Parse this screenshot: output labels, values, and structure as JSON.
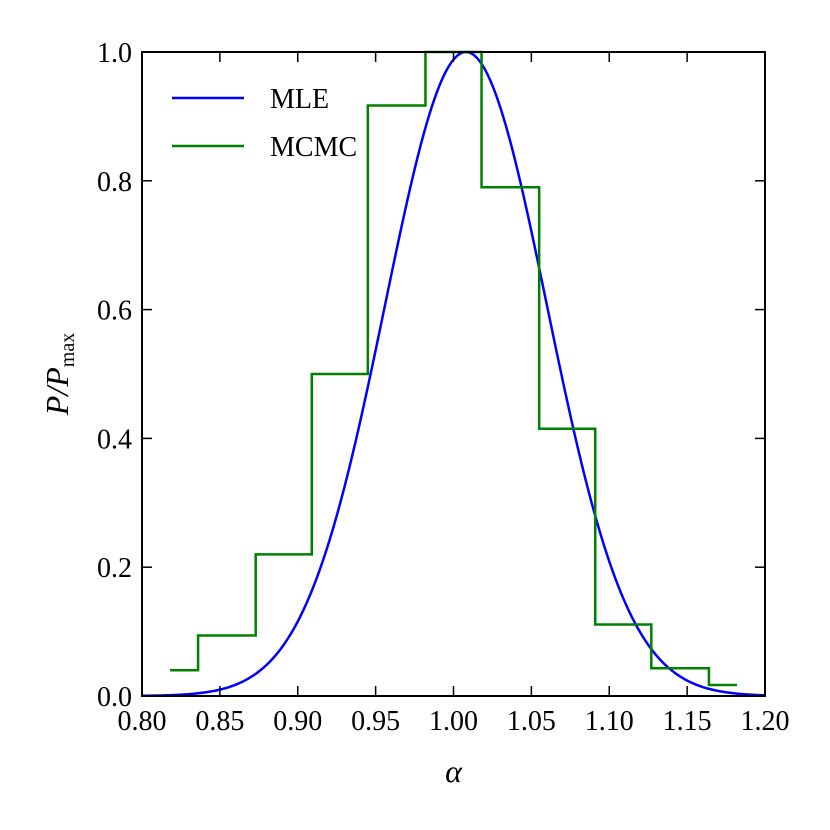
{
  "chart_data": {
    "type": "line",
    "title": "",
    "xlabel": "α",
    "ylabel": {
      "main": "P/P",
      "subscript": "max"
    },
    "xlim": [
      0.8,
      1.2
    ],
    "ylim": [
      0.0,
      1.0
    ],
    "xticks": [
      0.8,
      0.85,
      0.9,
      0.95,
      1.0,
      1.05,
      1.1,
      1.15,
      1.2
    ],
    "xtick_labels": [
      "0.80",
      "0.85",
      "0.90",
      "0.95",
      "1.00",
      "1.05",
      "1.10",
      "1.15",
      "1.20"
    ],
    "yticks": [
      0.0,
      0.2,
      0.4,
      0.6,
      0.8,
      1.0
    ],
    "ytick_labels": [
      "0.0",
      "0.2",
      "0.4",
      "0.6",
      "0.8",
      "1.0"
    ],
    "grid": false,
    "legend": {
      "position": "top-left",
      "entries": [
        "MLE",
        "MCMC"
      ]
    },
    "series": [
      {
        "name": "MLE",
        "kind": "curve",
        "color": "#0000ff",
        "model": "gaussian",
        "peak": 1.008,
        "sigma": 0.052,
        "x_range": [
          0.8,
          1.2
        ]
      },
      {
        "name": "MCMC",
        "kind": "step-histogram",
        "color": "#008000",
        "bin_edges": [
          0.818,
          0.836,
          0.873,
          0.909,
          0.945,
          0.982,
          1.018,
          1.055,
          1.091,
          1.127,
          1.164,
          1.182
        ],
        "values": [
          0.04,
          0.094,
          0.22,
          0.5,
          0.917,
          1.0,
          0.79,
          0.415,
          0.111,
          0.043,
          0.017
        ]
      }
    ]
  }
}
